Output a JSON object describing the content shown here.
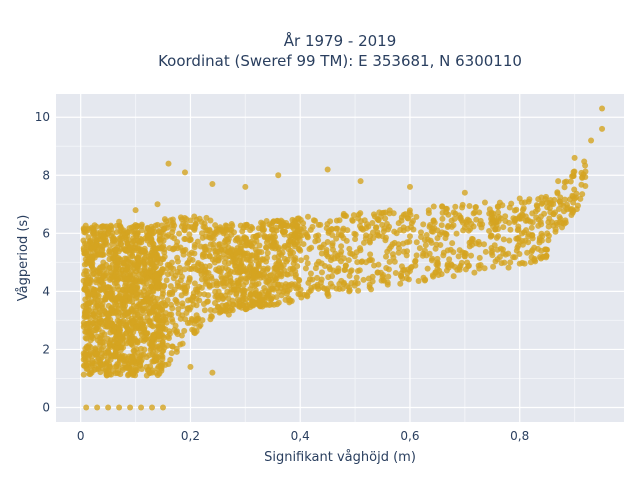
{
  "chart_data": {
    "type": "scatter",
    "title_line1": "År 1979 - 2019",
    "title_line2": "Koordinat (Sweref 99 TM): E 353681, N 6300110",
    "xlabel": "Signifikant våghöjd (m)",
    "ylabel": "Vågperiod (s)",
    "xlim": [
      -0.045,
      0.99
    ],
    "ylim": [
      -0.5,
      10.8
    ],
    "x_ticks": [
      0,
      0.2,
      0.4,
      0.6,
      0.8
    ],
    "x_tick_labels": [
      "0",
      "0,2",
      "0,4",
      "0,6",
      "0,8"
    ],
    "y_ticks": [
      0,
      2,
      4,
      6,
      8,
      10
    ],
    "y_tick_labels": [
      "0",
      "2",
      "4",
      "6",
      "8",
      "10"
    ],
    "grid": true,
    "marker_color": "#d4a421",
    "plot_bg": "#e5e8ef",
    "series": [
      {
        "points": [
          [
            0.01,
            0.0
          ],
          [
            0.03,
            0.0
          ],
          [
            0.05,
            0.0
          ],
          [
            0.07,
            0.0
          ],
          [
            0.09,
            0.0
          ],
          [
            0.11,
            0.0
          ],
          [
            0.13,
            0.0
          ],
          [
            0.15,
            0.0
          ],
          [
            0.02,
            1.2
          ],
          [
            0.05,
            1.3
          ],
          [
            0.08,
            1.5
          ],
          [
            0.12,
            1.4
          ],
          [
            0.16,
            1.5
          ],
          [
            0.2,
            1.4
          ],
          [
            0.24,
            1.2
          ],
          [
            0.01,
            4.4
          ],
          [
            0.02,
            5.0
          ],
          [
            0.03,
            5.6
          ],
          [
            0.05,
            6.0
          ],
          [
            0.07,
            6.4
          ],
          [
            0.1,
            6.8
          ],
          [
            0.14,
            7.0
          ],
          [
            0.16,
            8.4
          ],
          [
            0.19,
            8.1
          ],
          [
            0.24,
            7.7
          ],
          [
            0.3,
            7.6
          ],
          [
            0.36,
            8.0
          ],
          [
            0.45,
            8.2
          ],
          [
            0.51,
            7.8
          ],
          [
            0.6,
            7.6
          ],
          [
            0.7,
            7.4
          ],
          [
            0.8,
            7.2
          ],
          [
            0.87,
            7.8
          ],
          [
            0.9,
            8.6
          ],
          [
            0.93,
            9.2
          ],
          [
            0.95,
            9.6
          ],
          [
            0.95,
            10.3
          ],
          [
            0.2,
            5.8
          ],
          [
            0.25,
            6.1
          ],
          [
            0.3,
            5.3
          ],
          [
            0.35,
            5.6
          ],
          [
            0.4,
            5.4
          ],
          [
            0.45,
            5.7
          ],
          [
            0.5,
            5.8
          ],
          [
            0.55,
            5.9
          ],
          [
            0.6,
            5.9
          ],
          [
            0.65,
            6.1
          ],
          [
            0.7,
            6.2
          ],
          [
            0.75,
            6.4
          ],
          [
            0.8,
            6.5
          ],
          [
            0.85,
            6.9
          ],
          [
            0.3,
            3.6
          ],
          [
            0.35,
            3.8
          ],
          [
            0.4,
            3.9
          ],
          [
            0.45,
            4.1
          ],
          [
            0.5,
            4.3
          ],
          [
            0.55,
            4.5
          ],
          [
            0.6,
            4.7
          ],
          [
            0.65,
            5.0
          ],
          [
            0.7,
            5.2
          ],
          [
            0.75,
            5.4
          ],
          [
            0.8,
            5.7
          ],
          [
            0.85,
            6.0
          ],
          [
            0.9,
            7.2
          ],
          [
            0.27,
            3.2
          ]
        ]
      }
    ]
  }
}
